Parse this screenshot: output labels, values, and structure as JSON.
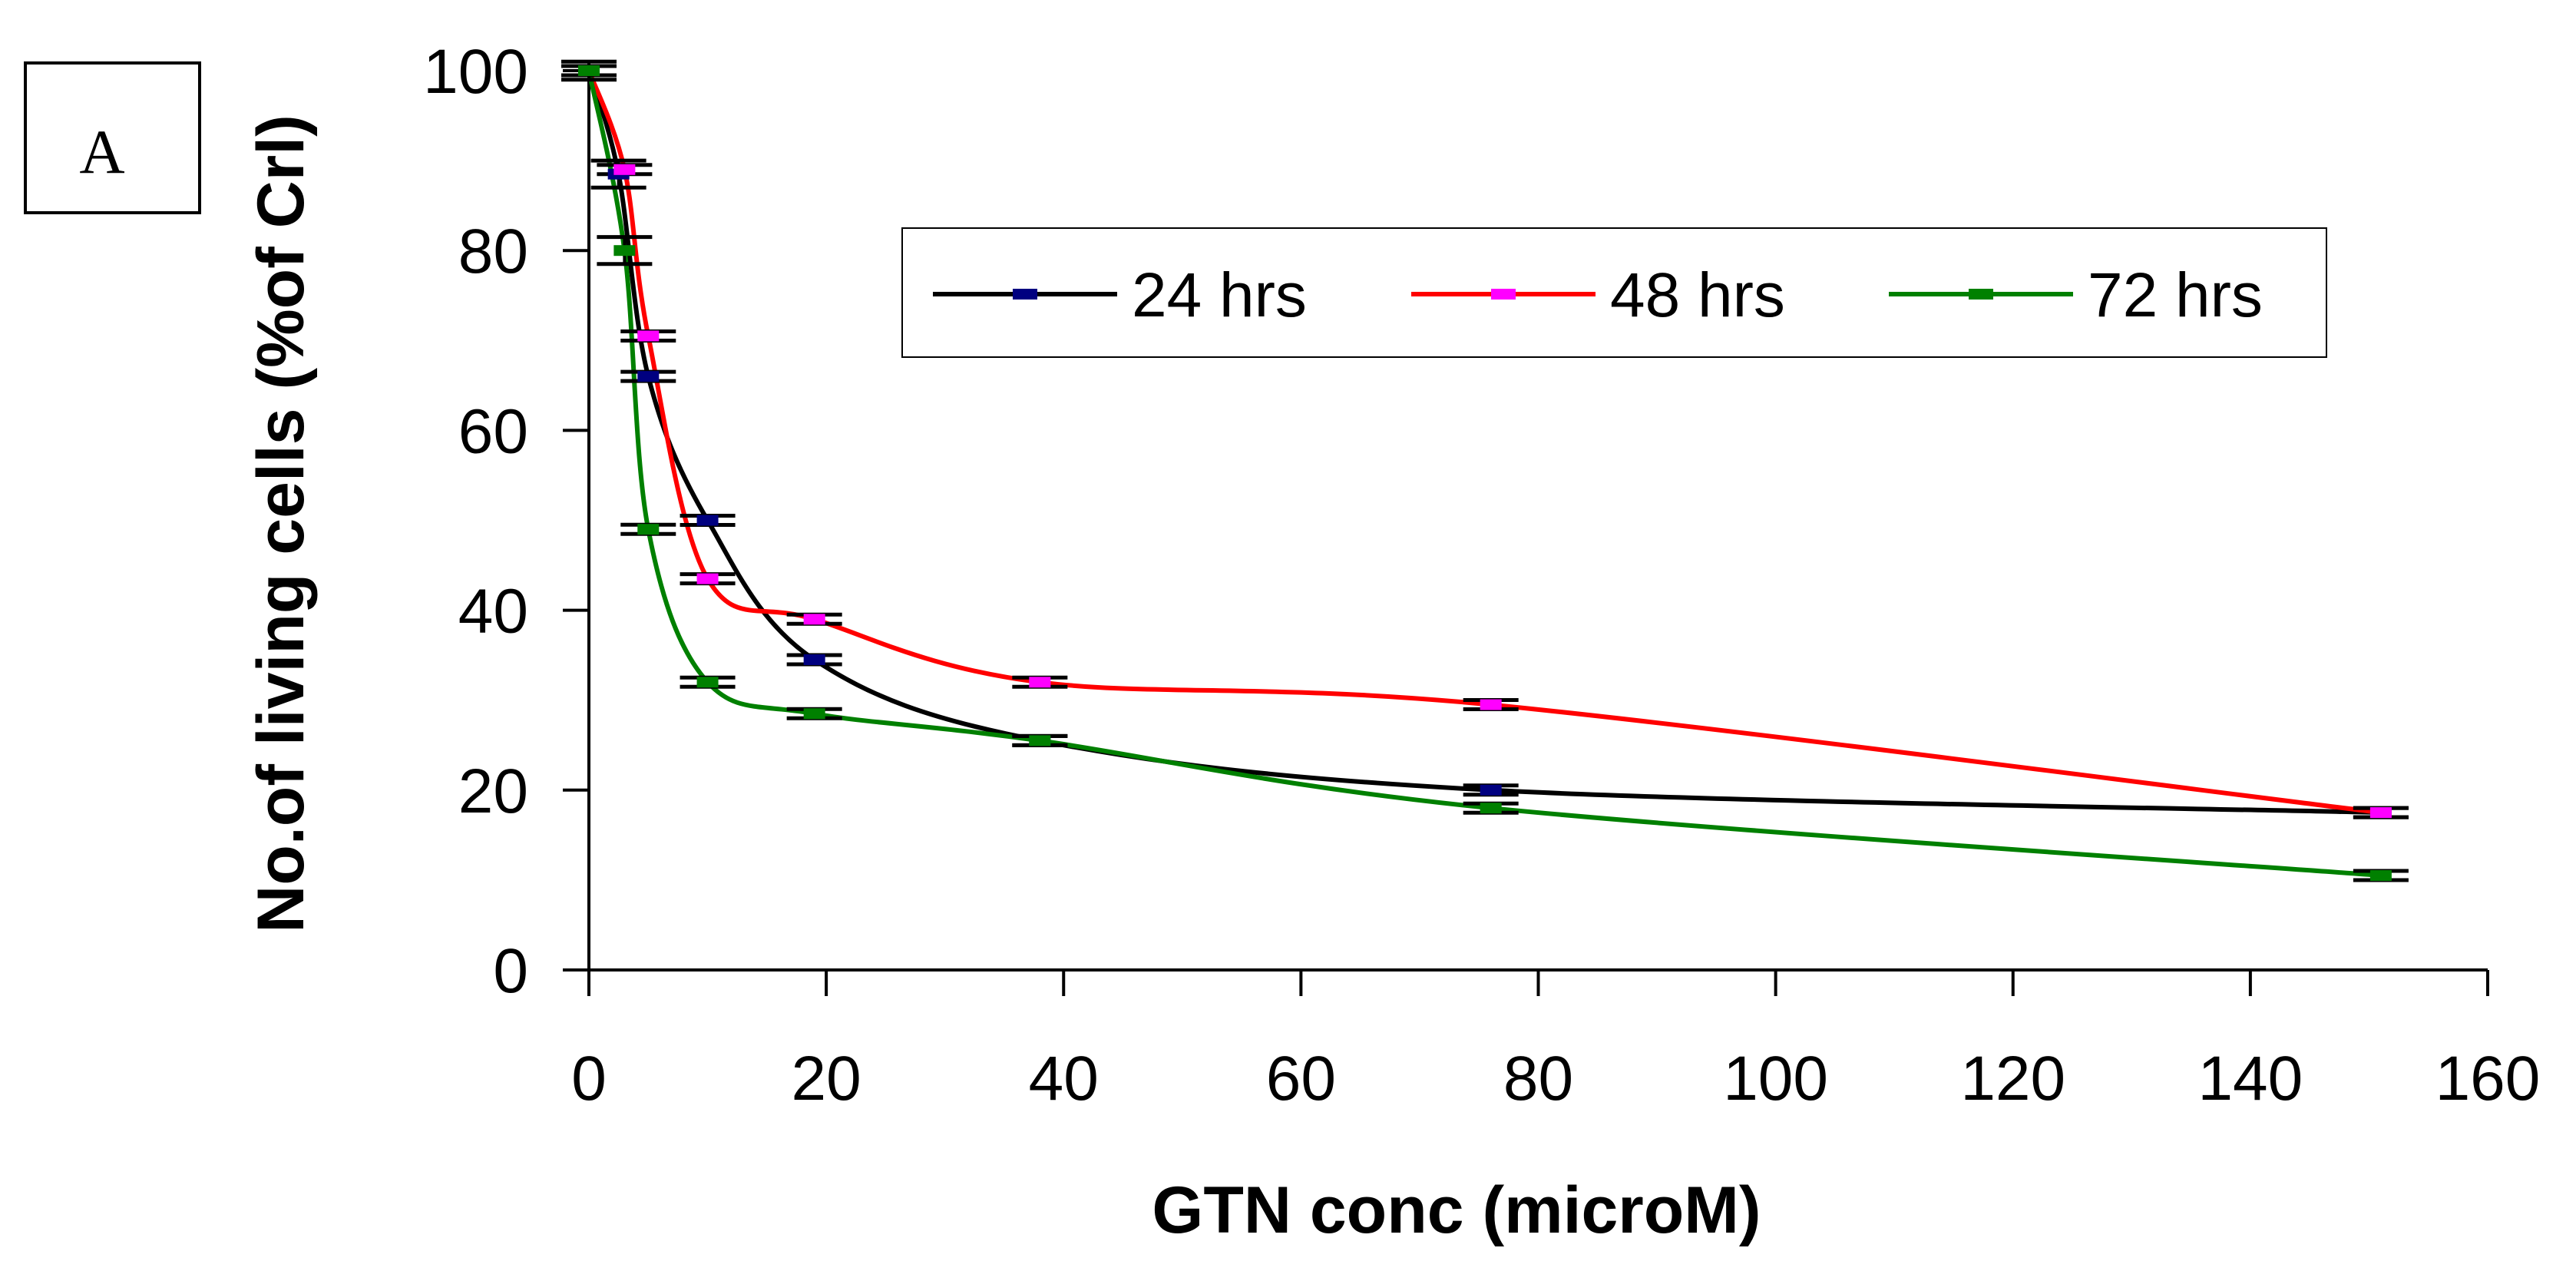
{
  "panel_label": "A",
  "chart_data": {
    "type": "line",
    "title": "",
    "xlabel": "GTN conc (microM)",
    "ylabel": "No.of living cells (%of Crl)",
    "xlim": [
      0,
      160
    ],
    "ylim": [
      0,
      100
    ],
    "x_ticks": [
      0,
      20,
      40,
      60,
      80,
      100,
      120,
      140,
      160
    ],
    "y_ticks": [
      0,
      20,
      40,
      60,
      80,
      100
    ],
    "legend_position": "top-right",
    "series": [
      {
        "name": "24 hrs",
        "color": "#000000",
        "marker_color": "#000080",
        "x": [
          0,
          2.5,
          5,
          10,
          19,
          38,
          76,
          151
        ],
        "y": [
          100,
          88.5,
          66,
          50,
          34.5,
          25.5,
          20,
          17.5
        ],
        "err": [
          1,
          1.5,
          0.5,
          0.5,
          0.5,
          0.5,
          0.5,
          0.5
        ]
      },
      {
        "name": "48 hrs",
        "color": "#ff0000",
        "marker_color": "#ff00ff",
        "x": [
          0,
          3,
          5,
          10,
          19,
          38,
          76,
          151
        ],
        "y": [
          100,
          89,
          70.5,
          43.5,
          39,
          32,
          29.5,
          17.5
        ],
        "err": [
          0.5,
          0.5,
          0.5,
          0.5,
          0.5,
          0.5,
          0.5,
          0.5
        ]
      },
      {
        "name": "72 hrs",
        "color": "#008000",
        "marker_color": "#008000",
        "x": [
          0,
          3,
          5,
          10,
          19,
          38,
          76,
          151
        ],
        "y": [
          100,
          80,
          49,
          32,
          28.5,
          25.5,
          18,
          10.5
        ],
        "err": [
          0.5,
          1.5,
          0.5,
          0.5,
          0.5,
          0.5,
          0.5,
          0.5
        ]
      }
    ]
  }
}
